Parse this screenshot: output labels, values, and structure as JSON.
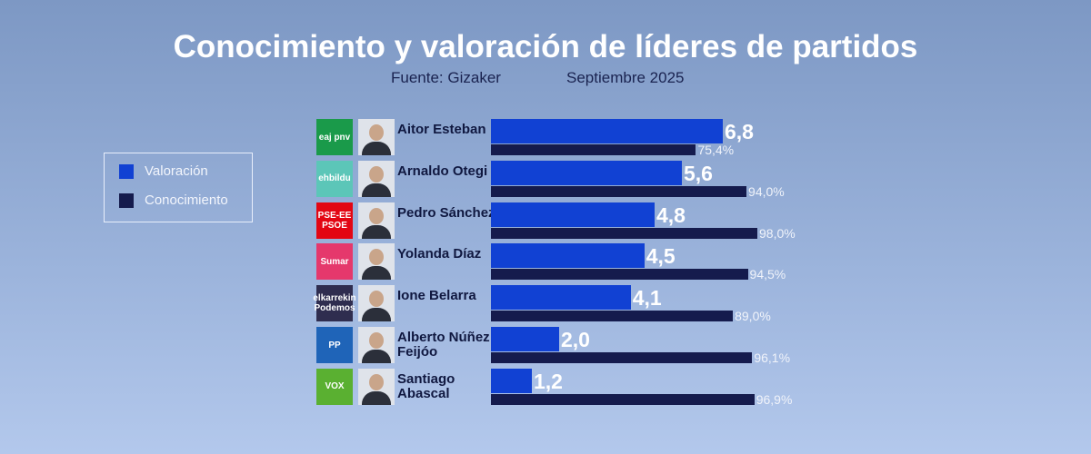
{
  "chart_data": {
    "type": "bar",
    "title": "Conocimiento y valoración de líderes de partidos",
    "subtitle": [
      "Fuente: Gizaker",
      "Septiembre 2025"
    ],
    "categories": [
      "Aitor Esteban",
      "Arnaldo Otegi",
      "Pedro Sánchez",
      "Yolanda Díaz",
      "Ione Belarra",
      "Alberto Núñez Feijóo",
      "Santiago Abascal"
    ],
    "parties": [
      "eaj pnv",
      "ehbildu",
      "PSE-EE PSOE",
      "Sumar",
      "elkarrekin Podemos",
      "PP",
      "VOX"
    ],
    "series": [
      {
        "name": "Valoración",
        "color": "#1141d3",
        "values": [
          6.8,
          5.6,
          4.8,
          4.5,
          4.1,
          2.0,
          1.2
        ],
        "value_labels": [
          "6,8",
          "5,6",
          "4,8",
          "4,5",
          "4,1",
          "2,0",
          "1,2"
        ]
      },
      {
        "name": "Conocimiento",
        "color": "#151b4d",
        "values": [
          75.4,
          94.0,
          98.0,
          94.5,
          89.0,
          96.1,
          96.9
        ],
        "value_labels": [
          "75,4%",
          "94,0%",
          "98,0%",
          "94,5%",
          "89,0%",
          "96,1%",
          "96,9%"
        ]
      }
    ]
  }
}
